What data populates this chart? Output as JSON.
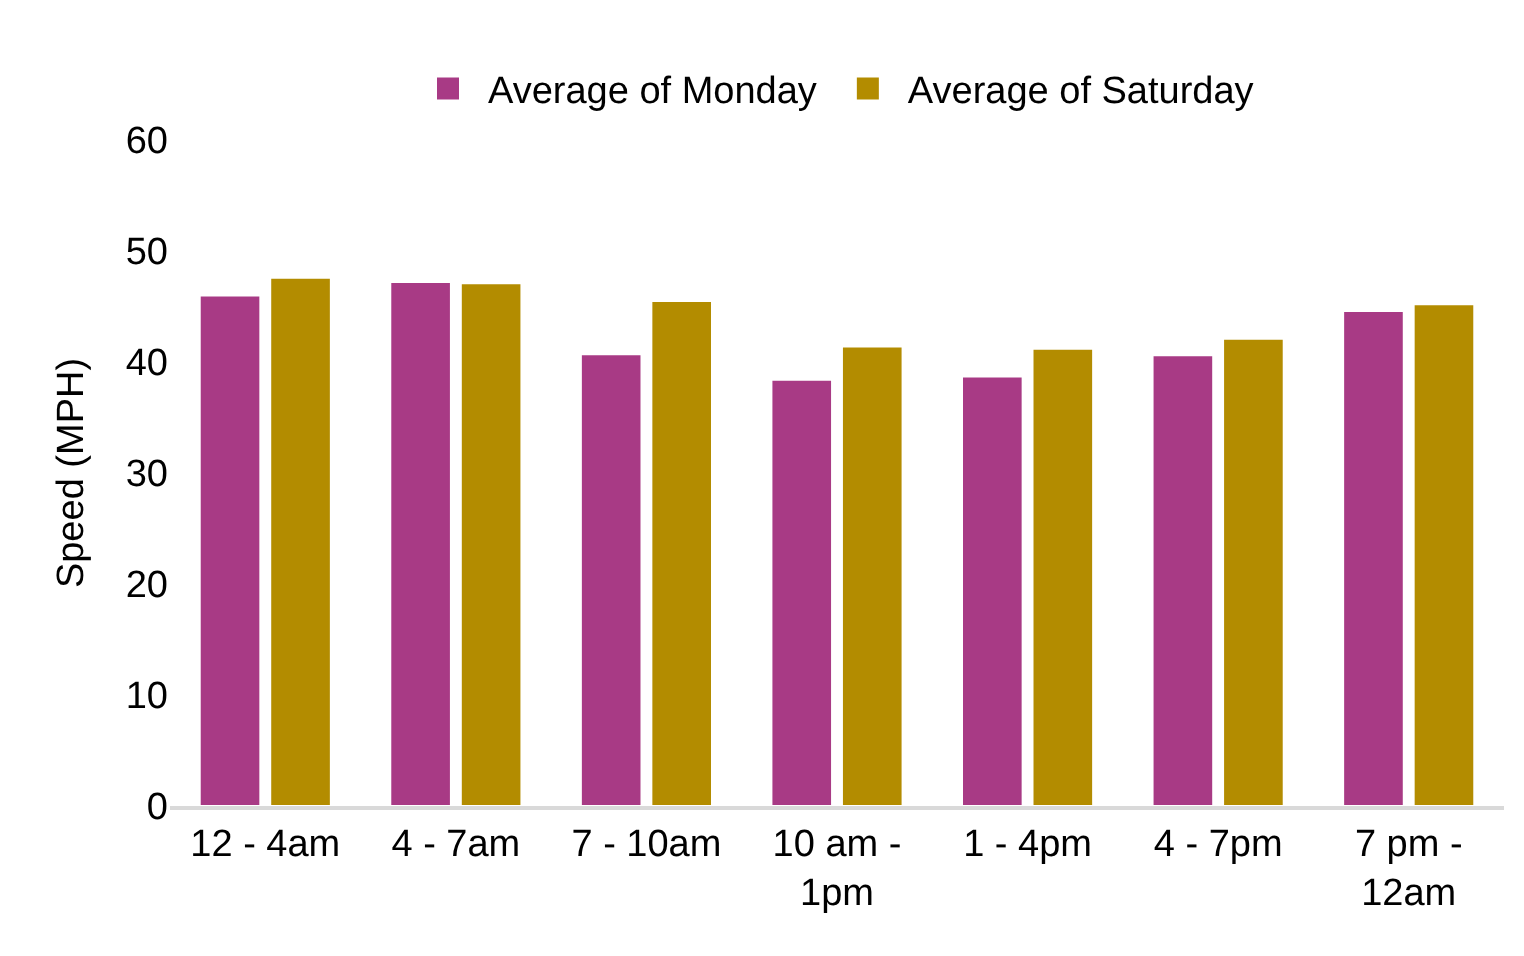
{
  "chart_data": {
    "type": "bar",
    "ylabel": "Speed (MPH)",
    "categories": [
      "12 - 4am",
      "4 - 7am",
      "7 - 10am",
      "10 am -\n1pm",
      "1 - 4pm",
      "4 - 7pm",
      "7 pm -\n12am"
    ],
    "series": [
      {
        "name": "Average of Monday",
        "color": "#a83a85",
        "values": [
          46.0,
          47.2,
          40.7,
          38.4,
          38.7,
          40.6,
          44.6
        ]
      },
      {
        "name": "Average of Saturday",
        "color": "#b38c00",
        "values": [
          47.6,
          47.1,
          45.5,
          41.4,
          41.2,
          42.1,
          45.2
        ]
      }
    ],
    "ylim": [
      0,
      60
    ],
    "yticks": [
      0,
      10,
      20,
      30,
      40,
      50,
      60
    ],
    "legend": "top"
  }
}
